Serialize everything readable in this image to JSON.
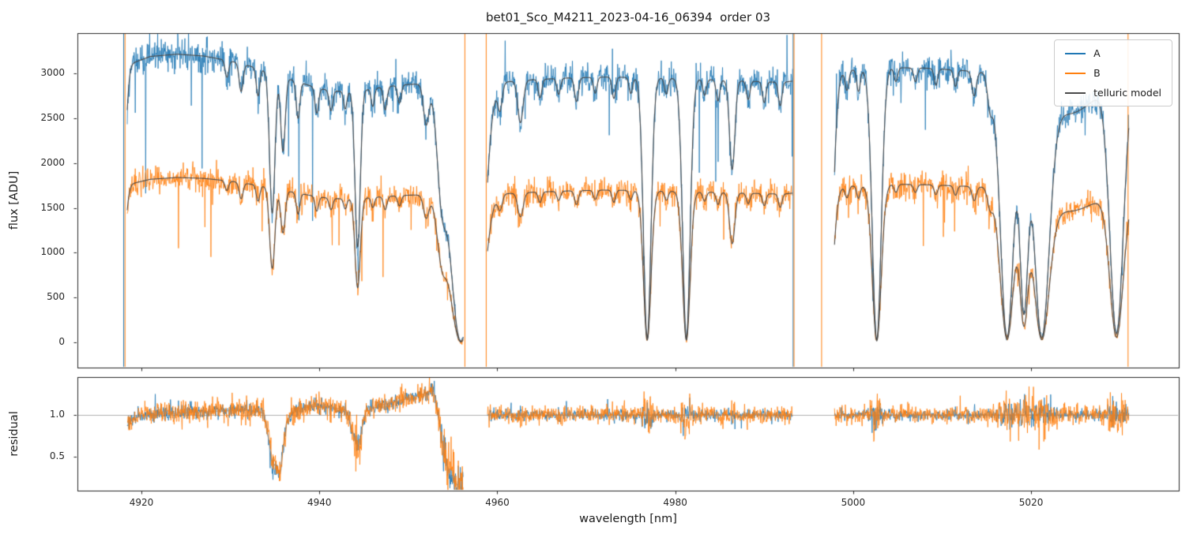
{
  "chart_data": {
    "type": "line",
    "title": "bet01_Sco_M4211_2023-04-16_06394  order 03",
    "xlabel": "wavelength [nm]",
    "legend": {
      "position": "upper right",
      "entries": [
        {
          "label": "A",
          "color": "#1f77b4"
        },
        {
          "label": "B",
          "color": "#ff7f0e"
        },
        {
          "label": "telluric model",
          "color": "#4a4a4a"
        }
      ]
    },
    "panels": [
      {
        "name": "flux",
        "ylabel": "flux [ADU]",
        "xlim": [
          4912.8,
          5036.6
        ],
        "ylim": [
          -280,
          3450
        ],
        "xticks": [
          4920,
          4940,
          4960,
          4980,
          5000,
          5020
        ],
        "xticklabels": [],
        "yticks": [
          0,
          500,
          1000,
          1500,
          2000,
          2500,
          3000
        ],
        "yticklabels": [
          "0",
          "500",
          "1000",
          "1500",
          "2000",
          "2500",
          "3000"
        ]
      },
      {
        "name": "residual",
        "ylabel": "residual",
        "xlim": [
          4912.8,
          5036.6
        ],
        "ylim": [
          0.1,
          1.45
        ],
        "xticks": [
          4920,
          4940,
          4960,
          4980,
          5000,
          5020
        ],
        "xticklabels": [
          "4920",
          "4940",
          "4960",
          "4980",
          "5000",
          "5020"
        ],
        "yticks": [
          0.5,
          1.0
        ],
        "yticklabels": [
          "0.5",
          "1.0"
        ],
        "hline": 1.0
      }
    ],
    "segments": [
      [
        4918.4,
        4956.2
      ],
      [
        4958.9,
        4993.2
      ],
      [
        4997.9,
        5031.0
      ]
    ],
    "series": [
      {
        "name": "A",
        "color": "#1f77b4",
        "noise_k": 1.5,
        "residual_noise": 0.032,
        "continuum": [
          [
            4918,
            3080
          ],
          [
            4921,
            3190
          ],
          [
            4924,
            3215
          ],
          [
            4927,
            3195
          ],
          [
            4930,
            3140
          ],
          [
            4933,
            3070
          ],
          [
            4936,
            3000
          ],
          [
            4940,
            2950
          ],
          [
            4944,
            2920
          ],
          [
            4948,
            2900
          ],
          [
            4952,
            2890
          ],
          [
            4956,
            2880
          ],
          [
            4960,
            2900
          ],
          [
            4964,
            2930
          ],
          [
            4968,
            2950
          ],
          [
            4972,
            2960
          ],
          [
            4976,
            2955
          ],
          [
            4980,
            2945
          ],
          [
            4984,
            2930
          ],
          [
            4988,
            2915
          ],
          [
            4992,
            2900
          ],
          [
            4996,
            2950
          ],
          [
            5000,
            3040
          ],
          [
            5004,
            3065
          ],
          [
            5008,
            3060
          ],
          [
            5012,
            3035
          ],
          [
            5016,
            3005
          ],
          [
            5020,
            2985
          ],
          [
            5024,
            2965
          ],
          [
            5028,
            2945
          ],
          [
            5033,
            2925
          ]
        ]
      },
      {
        "name": "B",
        "color": "#ff7f0e",
        "noise_k": 1.7,
        "residual_noise": 0.05,
        "continuum": [
          [
            4918,
            1750
          ],
          [
            4921,
            1820
          ],
          [
            4924,
            1840
          ],
          [
            4927,
            1830
          ],
          [
            4930,
            1800
          ],
          [
            4933,
            1760
          ],
          [
            4936,
            1720
          ],
          [
            4940,
            1690
          ],
          [
            4944,
            1670
          ],
          [
            4948,
            1655
          ],
          [
            4952,
            1650
          ],
          [
            4956,
            1645
          ],
          [
            4960,
            1655
          ],
          [
            4964,
            1675
          ],
          [
            4968,
            1690
          ],
          [
            4972,
            1700
          ],
          [
            4976,
            1695
          ],
          [
            4980,
            1685
          ],
          [
            4984,
            1675
          ],
          [
            4988,
            1665
          ],
          [
            4992,
            1655
          ],
          [
            4996,
            1690
          ],
          [
            5000,
            1745
          ],
          [
            5004,
            1765
          ],
          [
            5008,
            1760
          ],
          [
            5012,
            1745
          ],
          [
            5016,
            1730
          ],
          [
            5020,
            1715
          ],
          [
            5024,
            1700
          ],
          [
            5028,
            1690
          ],
          [
            5033,
            1680
          ]
        ]
      }
    ],
    "telluric_model": {
      "label": "telluric model",
      "color": "#4a4a4a",
      "features": [
        [
          4917.8,
          0.4,
          0.5
        ],
        [
          4929.6,
          0.2,
          0.06
        ],
        [
          4931.2,
          0.22,
          0.1
        ],
        [
          4933.1,
          0.2,
          0.1
        ],
        [
          4934.7,
          0.3,
          0.52
        ],
        [
          4935.9,
          0.25,
          0.28
        ],
        [
          4937.6,
          0.2,
          0.14
        ],
        [
          4939.7,
          0.2,
          0.1
        ],
        [
          4941.3,
          0.2,
          0.08
        ],
        [
          4942.9,
          0.18,
          0.07
        ],
        [
          4944.3,
          0.3,
          0.62
        ],
        [
          4946.0,
          0.18,
          0.07
        ],
        [
          4947.4,
          0.2,
          0.09
        ],
        [
          4949.0,
          0.2,
          0.07
        ],
        [
          4942.0,
          4.0,
          0.045
        ],
        [
          4952.0,
          0.3,
          0.15
        ],
        [
          4953.8,
          0.5,
          0.35
        ],
        [
          4955.9,
          1.3,
          0.995
        ],
        [
          4957.6,
          0.9,
          0.96
        ],
        [
          4960.3,
          0.25,
          0.1
        ],
        [
          4962.6,
          0.3,
          0.16
        ],
        [
          4964.8,
          0.2,
          0.07
        ],
        [
          4966.9,
          0.2,
          0.06
        ],
        [
          4968.9,
          0.22,
          0.09
        ],
        [
          4971.0,
          0.2,
          0.06
        ],
        [
          4973.1,
          0.2,
          0.08
        ],
        [
          4975.0,
          0.2,
          0.06
        ],
        [
          4976.85,
          0.42,
          0.985
        ],
        [
          4979.0,
          0.2,
          0.06
        ],
        [
          4981.25,
          0.42,
          0.985
        ],
        [
          4983.3,
          0.2,
          0.06
        ],
        [
          4984.8,
          0.2,
          0.08
        ],
        [
          4986.4,
          0.3,
          0.34
        ],
        [
          4988.2,
          0.2,
          0.07
        ],
        [
          4990.0,
          0.2,
          0.08
        ],
        [
          4991.8,
          0.2,
          0.09
        ],
        [
          4997.3,
          0.5,
          0.75
        ],
        [
          4999.3,
          0.2,
          0.07
        ],
        [
          5000.6,
          0.2,
          0.08
        ],
        [
          5002.65,
          0.5,
          0.99
        ],
        [
          5004.8,
          0.2,
          0.05
        ],
        [
          5007.0,
          0.2,
          0.05
        ],
        [
          5009.3,
          0.2,
          0.06
        ],
        [
          5011.5,
          0.2,
          0.06
        ],
        [
          5013.6,
          0.25,
          0.09
        ],
        [
          5015.4,
          0.3,
          0.12
        ],
        [
          5017.3,
          0.75,
          0.98
        ],
        [
          5019.2,
          0.5,
          0.88
        ],
        [
          5021.2,
          0.85,
          0.98
        ],
        [
          5024.0,
          3.0,
          0.14
        ],
        [
          5029.6,
          0.75,
          0.965
        ]
      ]
    },
    "residual_systematic": [
      [
        4918.4,
        0.92
      ],
      [
        4919.5,
        0.97
      ],
      [
        4921,
        1.0
      ],
      [
        4924,
        1.02
      ],
      [
        4927,
        1.04
      ],
      [
        4930,
        1.05
      ],
      [
        4932,
        1.06
      ],
      [
        4933.8,
        1.02
      ],
      [
        4934.7,
        0.45
      ],
      [
        4935.6,
        0.3
      ],
      [
        4936.3,
        0.92
      ],
      [
        4937.5,
        1.07
      ],
      [
        4939,
        1.1
      ],
      [
        4941,
        1.09
      ],
      [
        4943,
        1.06
      ],
      [
        4944.3,
        0.6
      ],
      [
        4945.2,
        1.04
      ],
      [
        4947,
        1.12
      ],
      [
        4949,
        1.17
      ],
      [
        4951,
        1.22
      ],
      [
        4952.8,
        1.3
      ],
      [
        4953.8,
        0.7
      ],
      [
        4954.6,
        0.3
      ],
      [
        4955.6,
        0.15
      ],
      [
        4956.2,
        0.12
      ]
    ],
    "artifact_lines": [
      {
        "x": 4918.0,
        "color": "#1f77b4"
      },
      {
        "x": 4918.15,
        "color": "#ff7f0e"
      },
      {
        "x": 4956.35,
        "color": "#ff7f0e"
      },
      {
        "x": 4958.75,
        "color": "#ff7f0e"
      },
      {
        "x": 4993.25,
        "color": "#1f77b4"
      },
      {
        "x": 4993.35,
        "color": "#ff7f0e"
      },
      {
        "x": 4996.45,
        "color": "#ff7f0e"
      },
      {
        "x": 5030.9,
        "color": "#ff7f0e"
      }
    ]
  }
}
